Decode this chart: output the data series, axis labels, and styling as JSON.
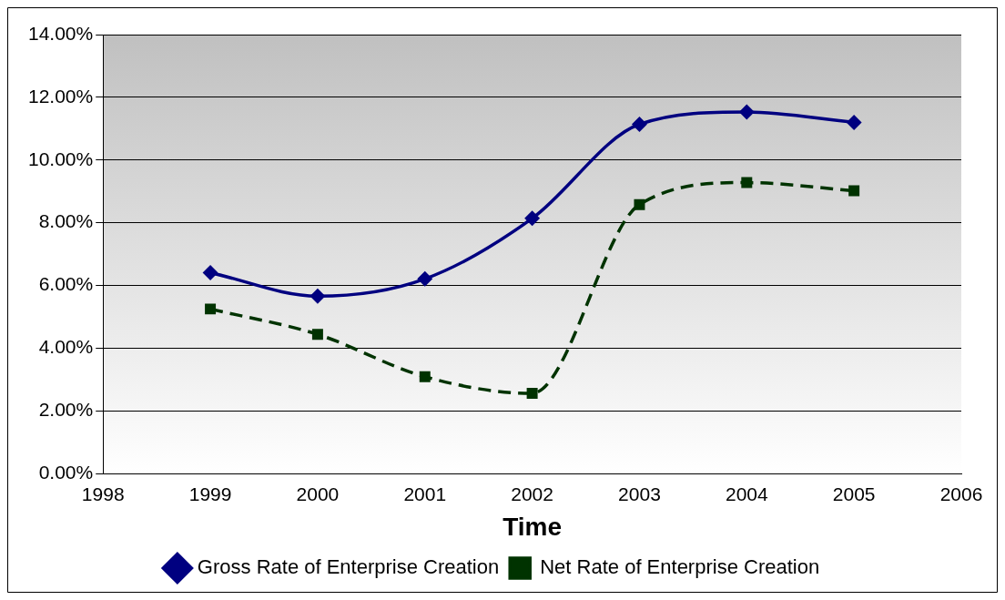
{
  "chart_data": {
    "type": "line",
    "xlabel": "Time",
    "x": [
      1999,
      2000,
      2001,
      2002,
      2003,
      2004,
      2005
    ],
    "series": [
      {
        "name": "Gross Rate of Enterprise Creation",
        "color": "#000080",
        "marker": "diamond",
        "line_style": "solid",
        "values": [
          6.41,
          5.66,
          6.21,
          8.14,
          11.14,
          11.53,
          11.2
        ]
      },
      {
        "name": "Net Rate of Enterprise Creation",
        "color": "#003300",
        "marker": "square",
        "line_style": "dashed",
        "values": [
          5.25,
          4.44,
          3.09,
          2.56,
          8.58,
          9.28,
          9.02
        ]
      }
    ],
    "xlim": [
      1998,
      2006
    ],
    "xticks": [
      1998,
      1999,
      2000,
      2001,
      2002,
      2003,
      2004,
      2005,
      2006
    ],
    "ylim": [
      0,
      14
    ],
    "yticks": [
      {
        "value": 0,
        "label": "0.00%"
      },
      {
        "value": 2,
        "label": "2.00%"
      },
      {
        "value": 4,
        "label": "4.00%"
      },
      {
        "value": 6,
        "label": "6.00%"
      },
      {
        "value": 8,
        "label": "8.00%"
      },
      {
        "value": 10,
        "label": "10.00%"
      },
      {
        "value": 12,
        "label": "12.00%"
      },
      {
        "value": 14,
        "label": "14.00%"
      }
    ],
    "grid": "y",
    "legend": "bottom"
  }
}
